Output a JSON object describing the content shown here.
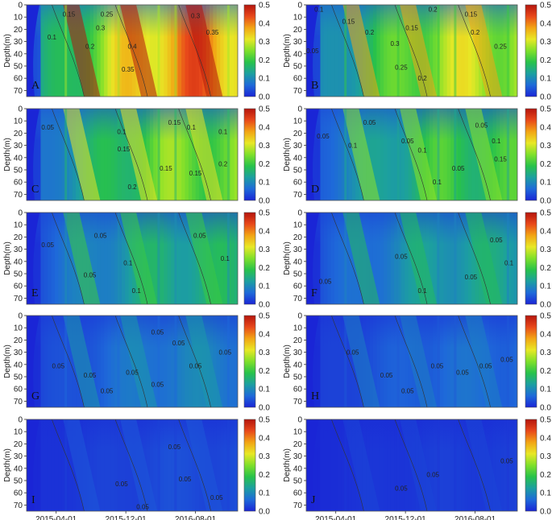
{
  "chart_data": {
    "type": "heatmap",
    "layout": "5 rows x 2 columns of contour panels, one shared colorbar per panel",
    "ylabel": "Depth(m)",
    "y_ticks": [
      0,
      10,
      20,
      30,
      40,
      50,
      60,
      70
    ],
    "ylim": [
      75,
      0
    ],
    "x_ticks": [
      "2015-04-01",
      "2015-12-01",
      "2016-08-01"
    ],
    "colorbar_ticks": [
      0.0,
      0.1,
      0.2,
      0.3,
      0.4,
      0.5
    ],
    "colorbar_range": [
      0,
      0.5
    ],
    "colormap": [
      "#1a25d6",
      "#1e6ad9",
      "#1c9fa0",
      "#28c24a",
      "#7fe02a",
      "#e8e826",
      "#f2a414",
      "#e8481a",
      "#b5150d"
    ],
    "panels": [
      {
        "label": "A",
        "level": 0.9,
        "contours": [
          {
            "text": "0.1",
            "x": 0.12,
            "y": 0.35
          },
          {
            "text": "0.2",
            "x": 0.3,
            "y": 0.45
          },
          {
            "text": "0.3",
            "x": 0.35,
            "y": 0.25
          },
          {
            "text": "0.25",
            "x": 0.38,
            "y": 0.1
          },
          {
            "text": "0.4",
            "x": 0.5,
            "y": 0.45
          },
          {
            "text": "0.35",
            "x": 0.48,
            "y": 0.7
          },
          {
            "text": "0.3",
            "x": 0.8,
            "y": 0.12
          },
          {
            "text": "0.35",
            "x": 0.88,
            "y": 0.3
          },
          {
            "text": "0.15",
            "x": 0.2,
            "y": 0.1
          }
        ]
      },
      {
        "label": "B",
        "level": 0.65,
        "contours": [
          {
            "text": "0.1",
            "x": 0.06,
            "y": 0.05
          },
          {
            "text": "0.05",
            "x": 0.03,
            "y": 0.5
          },
          {
            "text": "0.15",
            "x": 0.2,
            "y": 0.18
          },
          {
            "text": "0.2",
            "x": 0.3,
            "y": 0.3
          },
          {
            "text": "0.3",
            "x": 0.42,
            "y": 0.42
          },
          {
            "text": "0.25",
            "x": 0.45,
            "y": 0.68
          },
          {
            "text": "0.15",
            "x": 0.5,
            "y": 0.25
          },
          {
            "text": "0.2",
            "x": 0.6,
            "y": 0.05
          },
          {
            "text": "0.2",
            "x": 0.55,
            "y": 0.8
          },
          {
            "text": "0.15",
            "x": 0.78,
            "y": 0.1
          },
          {
            "text": "0.2",
            "x": 0.8,
            "y": 0.3
          },
          {
            "text": "0.25",
            "x": 0.92,
            "y": 0.45
          }
        ]
      },
      {
        "label": "C",
        "level": 0.55,
        "contours": [
          {
            "text": "0.05",
            "x": 0.1,
            "y": 0.2
          },
          {
            "text": "0.1",
            "x": 0.45,
            "y": 0.25
          },
          {
            "text": "0.15",
            "x": 0.46,
            "y": 0.44
          },
          {
            "text": "0.15",
            "x": 0.7,
            "y": 0.15
          },
          {
            "text": "0.1",
            "x": 0.78,
            "y": 0.2
          },
          {
            "text": "0.15",
            "x": 0.66,
            "y": 0.65
          },
          {
            "text": "0.15",
            "x": 0.8,
            "y": 0.7
          },
          {
            "text": "0.2",
            "x": 0.5,
            "y": 0.85
          },
          {
            "text": "0.2",
            "x": 0.93,
            "y": 0.6
          },
          {
            "text": "0.1",
            "x": 0.93,
            "y": 0.25
          }
        ]
      },
      {
        "label": "D",
        "level": 0.45,
        "contours": [
          {
            "text": "0.05",
            "x": 0.08,
            "y": 0.3
          },
          {
            "text": "0.05",
            "x": 0.3,
            "y": 0.15
          },
          {
            "text": "0.1",
            "x": 0.22,
            "y": 0.4
          },
          {
            "text": "0.05",
            "x": 0.48,
            "y": 0.35
          },
          {
            "text": "0.1",
            "x": 0.55,
            "y": 0.45
          },
          {
            "text": "0.05",
            "x": 0.72,
            "y": 0.65
          },
          {
            "text": "0.1",
            "x": 0.62,
            "y": 0.8
          },
          {
            "text": "0.05",
            "x": 0.83,
            "y": 0.18
          },
          {
            "text": "0.1",
            "x": 0.9,
            "y": 0.35
          },
          {
            "text": "0.15",
            "x": 0.92,
            "y": 0.55
          }
        ]
      },
      {
        "label": "E",
        "level": 0.35,
        "contours": [
          {
            "text": "0.05",
            "x": 0.1,
            "y": 0.35
          },
          {
            "text": "0.05",
            "x": 0.35,
            "y": 0.25
          },
          {
            "text": "0.1",
            "x": 0.48,
            "y": 0.55
          },
          {
            "text": "0.05",
            "x": 0.3,
            "y": 0.68
          },
          {
            "text": "0.1",
            "x": 0.52,
            "y": 0.85
          },
          {
            "text": "0.05",
            "x": 0.82,
            "y": 0.25
          },
          {
            "text": "0.1",
            "x": 0.94,
            "y": 0.5
          }
        ]
      },
      {
        "label": "F",
        "level": 0.3,
        "contours": [
          {
            "text": "0.05",
            "x": 0.09,
            "y": 0.75
          },
          {
            "text": "0.05",
            "x": 0.45,
            "y": 0.48
          },
          {
            "text": "0.1",
            "x": 0.55,
            "y": 0.85
          },
          {
            "text": "0.05",
            "x": 0.78,
            "y": 0.7
          },
          {
            "text": "0.05",
            "x": 0.9,
            "y": 0.3
          },
          {
            "text": "0.1",
            "x": 0.96,
            "y": 0.55
          }
        ]
      },
      {
        "label": "G",
        "level": 0.2,
        "contours": [
          {
            "text": "0.05",
            "x": 0.15,
            "y": 0.55
          },
          {
            "text": "0.05",
            "x": 0.3,
            "y": 0.65
          },
          {
            "text": "0.05",
            "x": 0.38,
            "y": 0.82
          },
          {
            "text": "0.05",
            "x": 0.5,
            "y": 0.62
          },
          {
            "text": "0.05",
            "x": 0.62,
            "y": 0.18
          },
          {
            "text": "0.05",
            "x": 0.62,
            "y": 0.75
          },
          {
            "text": "0.05",
            "x": 0.72,
            "y": 0.3
          },
          {
            "text": "0.05",
            "x": 0.8,
            "y": 0.55
          },
          {
            "text": "0.05",
            "x": 0.94,
            "y": 0.4
          }
        ]
      },
      {
        "label": "H",
        "level": 0.15,
        "contours": [
          {
            "text": "0.05",
            "x": 0.22,
            "y": 0.4
          },
          {
            "text": "0.05",
            "x": 0.38,
            "y": 0.65
          },
          {
            "text": "0.05",
            "x": 0.48,
            "y": 0.82
          },
          {
            "text": "0.05",
            "x": 0.62,
            "y": 0.55
          },
          {
            "text": "0.05",
            "x": 0.74,
            "y": 0.62
          },
          {
            "text": "0.05",
            "x": 0.85,
            "y": 0.55
          },
          {
            "text": "0.05",
            "x": 0.95,
            "y": 0.48
          }
        ]
      },
      {
        "label": "I",
        "level": 0.08,
        "contours": [
          {
            "text": "0.05",
            "x": 0.45,
            "y": 0.7
          },
          {
            "text": "0.05",
            "x": 0.55,
            "y": 0.95
          },
          {
            "text": "0.05",
            "x": 0.7,
            "y": 0.3
          },
          {
            "text": "0.05",
            "x": 0.75,
            "y": 0.65
          },
          {
            "text": "0.05",
            "x": 0.9,
            "y": 0.85
          }
        ]
      },
      {
        "label": "J",
        "level": 0.05,
        "contours": [
          {
            "text": "0.05",
            "x": 0.45,
            "y": 0.75
          },
          {
            "text": "0.05",
            "x": 0.6,
            "y": 0.6
          },
          {
            "text": "0.05",
            "x": 0.95,
            "y": 0.45
          }
        ]
      }
    ]
  }
}
